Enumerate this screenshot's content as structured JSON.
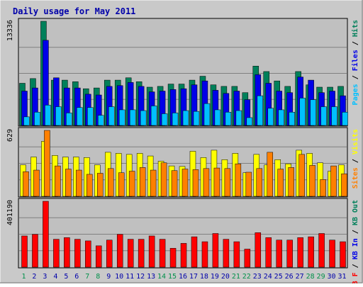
{
  "chart_data": {
    "type": "bar",
    "title": "Daily usage for May 2011",
    "categories": [
      "1",
      "2",
      "3",
      "4",
      "5",
      "6",
      "7",
      "8",
      "9",
      "10",
      "11",
      "12",
      "13",
      "14",
      "15",
      "16",
      "17",
      "18",
      "19",
      "20",
      "21",
      "22",
      "23",
      "24",
      "25",
      "26",
      "27",
      "28",
      "29",
      "30",
      "31"
    ],
    "weekend_days": [
      "1",
      "7",
      "8",
      "14",
      "15",
      "21",
      "22",
      "28",
      "29"
    ],
    "colors": {
      "title": "#0000aa",
      "weekday_label": "#0000aa",
      "weekend_label": "#00904a",
      "panel_bg": "#c0c0c0",
      "frame": "#000000",
      "outer_border": "#c9c9c9",
      "pages": "#00c0ff",
      "files": "#0000e8",
      "hits": "#00805a",
      "visits": "#ffff00",
      "sites": "#ff8000",
      "kb_in": "#00a0a0",
      "kb_out": "#0000e8",
      "kb_f": "#ff0000"
    },
    "panels": [
      {
        "id": "hits-files-pages",
        "max_label": "13336",
        "legend": [
          {
            "text": "Pages",
            "color": "#00c0ff"
          },
          {
            "text": " / ",
            "color": "#000000"
          },
          {
            "text": "Files",
            "color": "#0000e8"
          },
          {
            "text": " / ",
            "color": "#000000"
          },
          {
            "text": "Hits",
            "color": "#00805a"
          }
        ],
        "series": [
          {
            "name": "Hits",
            "color": "#00805a",
            "values": [
              5400,
              6000,
              13336,
              5800,
              5800,
              5600,
              4700,
              4800,
              5800,
              5800,
              6100,
              5600,
              4900,
              5000,
              5300,
              5300,
              5800,
              6300,
              5200,
              5000,
              5000,
              4200,
              7600,
              6900,
              5700,
              5000,
              6900,
              5200,
              4900,
              4900,
              5000
            ]
          },
          {
            "name": "Files",
            "color": "#0000e8",
            "values": [
              4400,
              4800,
              10900,
              6100,
              4800,
              4800,
              4000,
              3900,
              5000,
              5100,
              5500,
              5000,
              4300,
              4400,
              4600,
              4700,
              5200,
              5700,
              4500,
              4100,
              4400,
              3300,
              6500,
              5400,
              4400,
              4200,
              6200,
              5800,
              4200,
              4400,
              3800
            ]
          },
          {
            "name": "Pages",
            "color": "#00c0ff",
            "values": [
              1100,
              1700,
              2600,
              2400,
              1600,
              2300,
              2300,
              1300,
              2400,
              2000,
              2000,
              1900,
              2500,
              1500,
              1600,
              1900,
              1800,
              2800,
              2000,
              1700,
              1900,
              1000,
              3800,
              2200,
              2000,
              1700,
              3500,
              3300,
              2400,
              2400,
              1700
            ]
          }
        ]
      },
      {
        "id": "visits-sites",
        "max_label": "629",
        "legend": [
          {
            "text": "Sites",
            "color": "#ff8000"
          },
          {
            "text": " / ",
            "color": "#000000"
          },
          {
            "text": "Visits",
            "color": "#ffff00"
          }
        ],
        "series": [
          {
            "name": "Visits",
            "color": "#ffff00",
            "values": [
              300,
              375,
              525,
              390,
              375,
              375,
              370,
              300,
              420,
              410,
              400,
              410,
              385,
              335,
              290,
              285,
              430,
              370,
              440,
              350,
              410,
              225,
              400,
              300,
              350,
              310,
              440,
              410,
              320,
              240,
              300
            ]
          },
          {
            "name": "Sites",
            "color": "#ff8000",
            "values": [
              235,
              250,
              629,
              290,
              260,
              250,
              210,
              220,
              265,
              225,
              240,
              275,
              250,
              320,
              245,
              260,
              255,
              265,
              270,
              265,
              310,
              230,
              265,
              420,
              260,
              275,
              400,
              295,
              160,
              290,
              215
            ]
          }
        ]
      },
      {
        "id": "kbf-kbin-kbout",
        "max_label": "401190",
        "legend": [
          {
            "text": "KB F",
            "color": "#ff0000"
          },
          {
            "text": " / ",
            "color": "#000000"
          },
          {
            "text": "KB In",
            "color": "#0000e8"
          },
          {
            "text": " / ",
            "color": "#000000"
          },
          {
            "text": "KB Out",
            "color": "#00805a"
          }
        ],
        "series": [
          {
            "name": "KB F",
            "color": "#ff0000",
            "values": [
              190000,
              200000,
              401190,
              170000,
              180000,
              170000,
              160000,
              130000,
              165000,
              200000,
              170000,
              170000,
              190000,
              170000,
              115000,
              145000,
              185000,
              155000,
              205000,
              170000,
              155000,
              110000,
              210000,
              180000,
              165000,
              165000,
              180000,
              185000,
              205000,
              165000,
              155000
            ]
          }
        ]
      }
    ]
  }
}
